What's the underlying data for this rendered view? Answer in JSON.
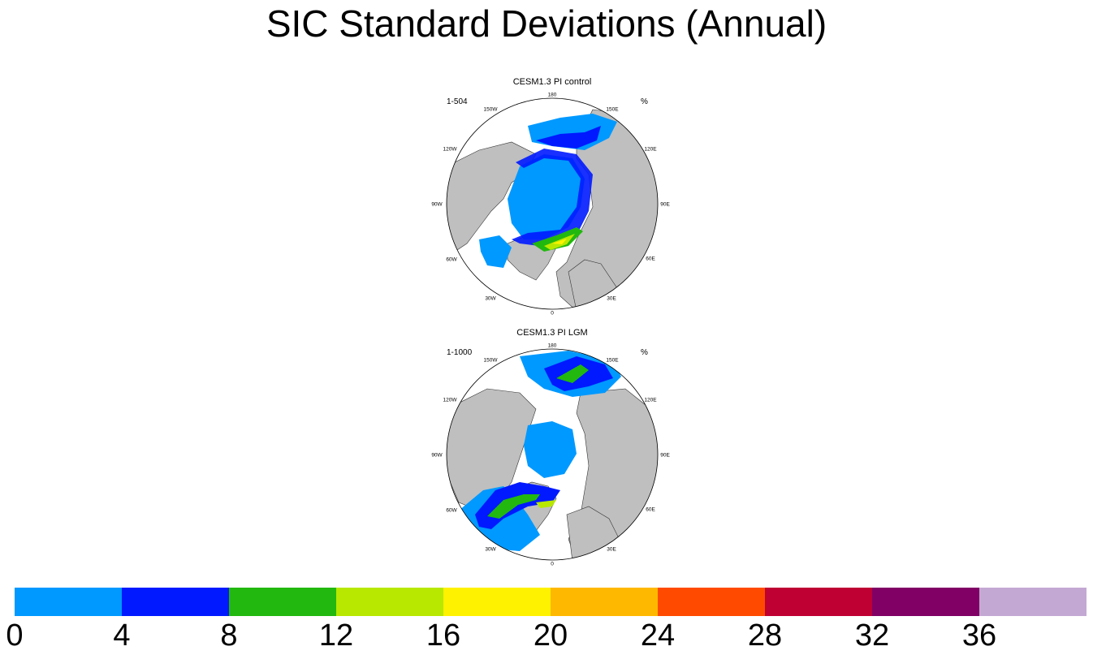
{
  "title": "SIC Standard Deviations (Annual)",
  "panels": [
    {
      "title": "CESM1.3 PI control",
      "left_string": "1-504",
      "right_string": "%",
      "lon_labels": [
        "180",
        "150E",
        "120E",
        "90E",
        "60E",
        "30E",
        "0",
        "30W",
        "60W",
        "90W",
        "120W",
        "150W"
      ]
    },
    {
      "title": "CESM1.3 PI LGM",
      "left_string": "1-1000",
      "right_string": "%",
      "lon_labels": [
        "180",
        "150E",
        "120E",
        "90E",
        "60E",
        "30E",
        "0",
        "30W",
        "60W",
        "90W",
        "120W",
        "150W"
      ]
    }
  ],
  "colorbar": {
    "colors": [
      "#0099ff",
      "#0019ff",
      "#22b80f",
      "#b8e800",
      "#fff200",
      "#ffb800",
      "#ff4a00",
      "#bf0033",
      "#800066",
      "#c4a8d4"
    ],
    "tick_labels": [
      "0",
      "4",
      "8",
      "12",
      "16",
      "20",
      "24",
      "28",
      "32",
      "36"
    ]
  },
  "land_color": "#bfbfbf"
}
